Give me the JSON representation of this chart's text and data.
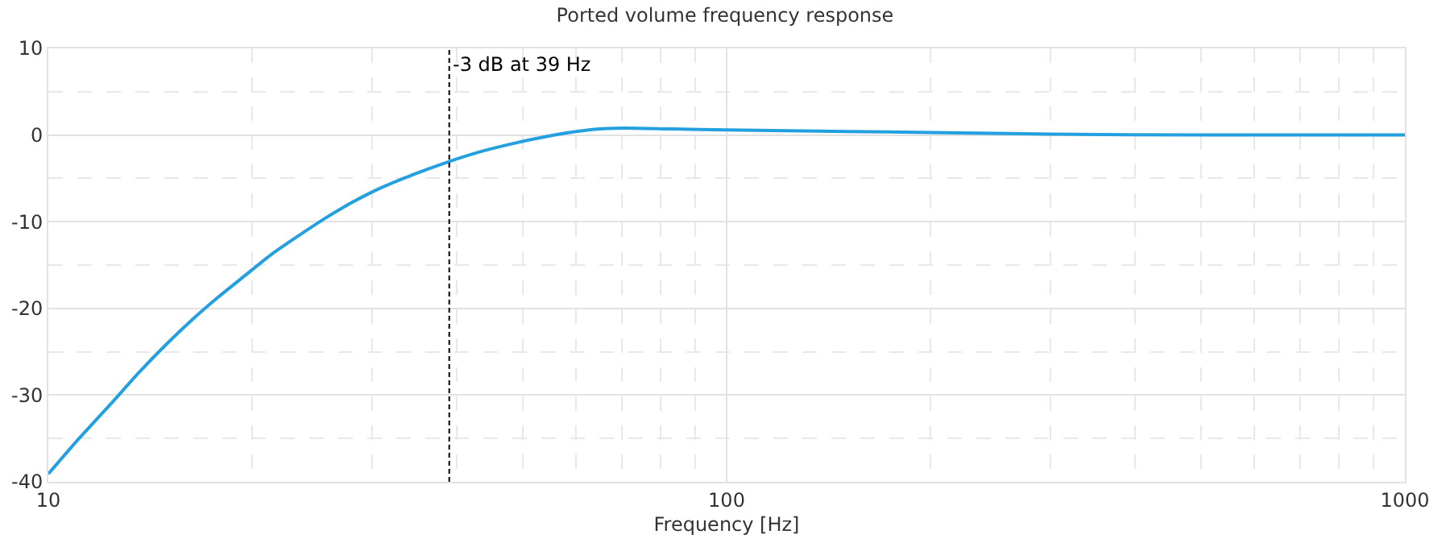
{
  "chart_data": {
    "type": "line",
    "title": "Ported volume frequency response",
    "xlabel": "Frequency [Hz]",
    "log": "x",
    "grid": true,
    "marker": "none",
    "line_style": "solid",
    "xlim": [
      10,
      1000
    ],
    "xticks": [
      10,
      {
        "value": 20,
        "label": null
      },
      {
        "value": 30,
        "label": null
      },
      {
        "value": 40,
        "label": null
      },
      {
        "value": 50,
        "label": null
      },
      {
        "value": 60,
        "label": null
      },
      {
        "value": 70,
        "label": null
      },
      {
        "value": 80,
        "label": null
      },
      {
        "value": 90,
        "label": null
      },
      100,
      {
        "value": 200,
        "label": null
      },
      {
        "value": 300,
        "label": null
      },
      {
        "value": 400,
        "label": null
      },
      {
        "value": 500,
        "label": null
      },
      {
        "value": 600,
        "label": null
      },
      {
        "value": 700,
        "label": null
      },
      {
        "value": 800,
        "label": null
      },
      {
        "value": 900,
        "label": null
      },
      1000
    ],
    "ylim": [
      -40,
      10
    ],
    "yticks": [
      -40,
      {
        "value": -35,
        "label": null
      },
      -30,
      {
        "value": -25,
        "label": null
      },
      -20,
      {
        "value": -15,
        "label": null
      },
      -10,
      {
        "value": -5,
        "label": null
      },
      0,
      {
        "value": 5,
        "label": null
      },
      10
    ],
    "x": [
      10,
      11.1,
      12.4,
      13.6,
      14.9,
      16.3,
      17.8,
      19.5,
      21.3,
      23.4,
      25.6,
      28,
      30.7,
      34.4,
      38.5,
      43,
      48.3,
      54,
      60,
      65,
      70.6,
      83,
      100,
      150,
      200,
      300,
      500,
      1000
    ],
    "series": [
      {
        "color": "#24a0e0",
        "values": [
          -39.1,
          -35,
          -30.9,
          -27.4,
          -24.2,
          -21.3,
          -18.7,
          -16.2,
          -13.8,
          -11.6,
          -9.6,
          -7.8,
          -6.2,
          -4.6,
          -3.2,
          -2.0,
          -1.0,
          -0.2,
          0.4,
          0.7,
          0.8,
          0.7,
          0.6,
          0.4,
          0.3,
          0.1,
          0,
          0
        ]
      }
    ],
    "ref_lines": [
      {
        "axis": "x",
        "value": 39,
        "label": "-3 dB at 39 Hz",
        "color": "#000000",
        "line_style": "dashed"
      }
    ]
  }
}
